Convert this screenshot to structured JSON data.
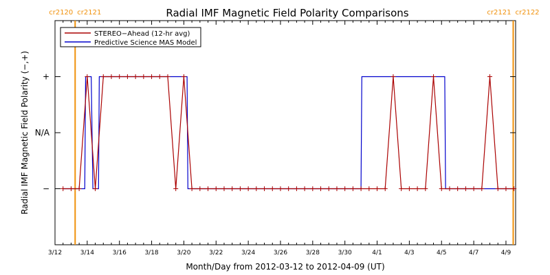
{
  "chart_data": {
    "type": "line",
    "title": "Radial IMF Magnetic Field Polarity Comparisons",
    "xlabel": "Month/Day from 2012-03-12 to 2012-04-09 (UT)",
    "ylabel": "Radial IMF Magnetic Field Polarity (−,+)",
    "xlim": [
      0,
      28.6
    ],
    "ylim": [
      -2.0,
      2.0
    ],
    "x_ticks": [
      {
        "x": 0,
        "label": "3/12"
      },
      {
        "x": 2,
        "label": "3/14"
      },
      {
        "x": 4,
        "label": "3/16"
      },
      {
        "x": 6,
        "label": "3/18"
      },
      {
        "x": 8,
        "label": "3/20"
      },
      {
        "x": 10,
        "label": "3/22"
      },
      {
        "x": 12,
        "label": "3/24"
      },
      {
        "x": 14,
        "label": "3/26"
      },
      {
        "x": 16,
        "label": "3/28"
      },
      {
        "x": 18,
        "label": "3/30"
      },
      {
        "x": 20,
        "label": "4/1"
      },
      {
        "x": 22,
        "label": "4/3"
      },
      {
        "x": 24,
        "label": "4/5"
      },
      {
        "x": 26,
        "label": "4/7"
      },
      {
        "x": 28,
        "label": "4/9"
      }
    ],
    "y_ticks": [
      {
        "y": 1,
        "label": "+"
      },
      {
        "y": 0,
        "label": "N/A"
      },
      {
        "y": -1,
        "label": "−"
      }
    ],
    "carrington_markers": [
      {
        "x": 1.25,
        "left_label": "cr2120",
        "right_label": "cr2121",
        "color": "#f0900a"
      },
      {
        "x": 28.45,
        "left_label": "cr2121",
        "right_label": "cr2122",
        "color": "#f0900a"
      }
    ],
    "legend": {
      "position": "top-left",
      "entries": [
        {
          "name": "STEREO−Ahead (12-hr avg)",
          "color": "#aa0000"
        },
        {
          "name": "Predictive Science MAS Model",
          "color": "#0000cc"
        }
      ]
    },
    "series": [
      {
        "name": "STEREO−Ahead (12-hr avg)",
        "color": "#aa0000",
        "marker": "+",
        "x": [
          0.5,
          1.0,
          1.5,
          2.0,
          2.5,
          3.0,
          3.5,
          4.0,
          4.5,
          5.0,
          5.5,
          6.0,
          6.5,
          7.0,
          7.5,
          8.0,
          8.5,
          9.0,
          9.5,
          10.0,
          10.5,
          11.0,
          11.5,
          12.0,
          12.5,
          13.0,
          13.5,
          14.0,
          14.5,
          15.0,
          15.5,
          16.0,
          16.5,
          17.0,
          17.5,
          18.0,
          18.5,
          19.0,
          19.5,
          20.0,
          20.5,
          21.0,
          21.5,
          22.0,
          22.5,
          23.0,
          23.5,
          24.0,
          24.5,
          25.0,
          25.5,
          26.0,
          26.5,
          27.0,
          27.5,
          28.0,
          28.5
        ],
        "y": [
          -1,
          -1,
          -1,
          1,
          -1,
          1,
          1,
          1,
          1,
          1,
          1,
          1,
          1,
          1,
          -1,
          1,
          -1,
          -1,
          -1,
          -1,
          -1,
          -1,
          -1,
          -1,
          -1,
          -1,
          -1,
          -1,
          -1,
          -1,
          -1,
          -1,
          -1,
          -1,
          -1,
          -1,
          -1,
          -1,
          -1,
          -1,
          -1,
          1,
          -1,
          -1,
          -1,
          -1,
          1,
          -1,
          -1,
          -1,
          -1,
          -1,
          -1,
          1,
          -1,
          -1,
          -1
        ]
      },
      {
        "name": "Predictive Science MAS Model",
        "color": "#0000cc",
        "marker": "none",
        "x": [
          0.5,
          1.7,
          1.85,
          1.9,
          2.25,
          2.35,
          2.7,
          2.75,
          8.2,
          8.25,
          8.4,
          8.45,
          19.0,
          19.05,
          24.2,
          24.25,
          28.5
        ],
        "y": [
          -1,
          -1,
          -1,
          1,
          1,
          -1,
          -1,
          1,
          1,
          -1,
          -1,
          -1,
          -1,
          1,
          1,
          -1,
          -1
        ]
      }
    ]
  }
}
